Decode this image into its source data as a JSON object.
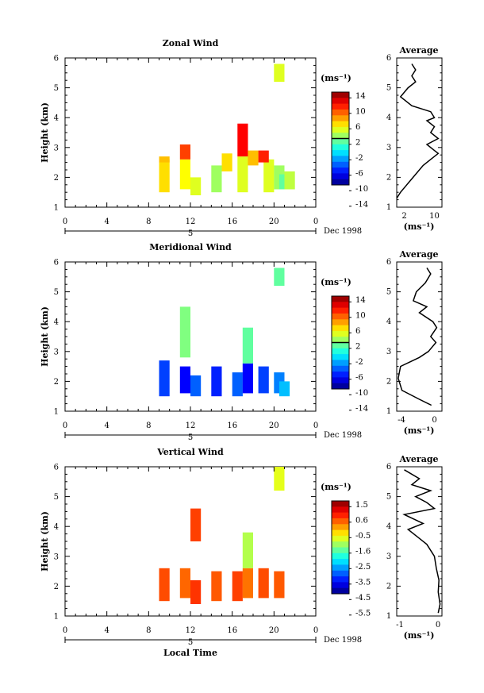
{
  "charts": [
    {
      "title": "Zonal Wind",
      "ylabel": "Height (km)",
      "yticks": [
        "1",
        "2",
        "3",
        "4",
        "5",
        "6"
      ],
      "xticks": [
        "0",
        "4",
        "8",
        "12",
        "16",
        "20",
        "0"
      ],
      "day_label": "5",
      "date_label": "Dec 1998",
      "xlabel": "",
      "cbar_unit": "(ms⁻¹)",
      "cbar_ticks": [
        "14",
        "10",
        "6",
        "2",
        "-2",
        "-6",
        "-10",
        "-14"
      ],
      "avg_title": "Average",
      "avg_xticks": [
        "2",
        "10"
      ],
      "avg_unit": "(ms⁻¹)",
      "avg_yticks": [
        "1",
        "2",
        "3",
        "4",
        "5",
        "6"
      ]
    },
    {
      "title": "Meridional Wind",
      "ylabel": "Height (km)",
      "yticks": [
        "1",
        "2",
        "3",
        "4",
        "5",
        "6"
      ],
      "xticks": [
        "0",
        "4",
        "8",
        "12",
        "16",
        "20",
        "0"
      ],
      "day_label": "5",
      "date_label": "Dec 1998",
      "xlabel": "",
      "cbar_unit": "(ms⁻¹)",
      "cbar_ticks": [
        "14",
        "10",
        "6",
        "2",
        "-2",
        "-6",
        "-10",
        "-14"
      ],
      "avg_title": "Average",
      "avg_xticks": [
        "-4",
        "0"
      ],
      "avg_unit": "(ms⁻¹)",
      "avg_yticks": [
        "1",
        "2",
        "3",
        "4",
        "5",
        "6"
      ]
    },
    {
      "title": "Vertical Wind",
      "ylabel": "Height (km)",
      "yticks": [
        "1",
        "2",
        "3",
        "4",
        "5",
        "6"
      ],
      "xticks": [
        "0",
        "4",
        "8",
        "12",
        "16",
        "20",
        "0"
      ],
      "day_label": "5",
      "date_label": "Dec 1998",
      "xlabel": "Local Time",
      "cbar_unit": "(ms⁻¹)",
      "cbar_ticks": [
        "1.5",
        "0.6",
        "-0.5",
        "-1.6",
        "-2.5",
        "-3.5",
        "-4.5",
        "-5.5"
      ],
      "avg_title": "Average",
      "avg_xticks": [
        "-1",
        "0"
      ],
      "avg_unit": "(ms⁻¹)",
      "avg_yticks": [
        "1",
        "2",
        "3",
        "4",
        "5",
        "6"
      ]
    }
  ],
  "chart_data": [
    {
      "type": "heatmap",
      "title": "Zonal Wind",
      "xlabel": "",
      "ylabel": "Height (km)",
      "x_unit": "hour (local time)",
      "xlim": [
        0,
        24
      ],
      "ylim": [
        1,
        6
      ],
      "color_range": [
        -16,
        16
      ],
      "zero_contour": true,
      "cells": [
        [
          9.5,
          1.5,
          2.6,
          5
        ],
        [
          9.5,
          2.5,
          2.7,
          6
        ],
        [
          11.5,
          1.6,
          2.6,
          4
        ],
        [
          11.5,
          2.6,
          3.1,
          10
        ],
        [
          12.5,
          1.4,
          2.0,
          3
        ],
        [
          14.5,
          1.5,
          2.4,
          1
        ],
        [
          15.5,
          2.2,
          2.8,
          5
        ],
        [
          17.0,
          1.5,
          2.7,
          3
        ],
        [
          17.0,
          2.7,
          3.8,
          12
        ],
        [
          18.0,
          2.4,
          2.9,
          6
        ],
        [
          19.5,
          1.5,
          2.6,
          3
        ],
        [
          20.5,
          1.6,
          2.4,
          1
        ],
        [
          21.0,
          1.6,
          2.1,
          -1
        ],
        [
          21.5,
          1.6,
          2.2,
          2
        ],
        [
          19.0,
          2.5,
          2.9,
          11
        ],
        [
          20.5,
          5.2,
          5.8,
          3
        ]
      ],
      "average": {
        "title": "Average",
        "xlim": [
          0,
          12
        ],
        "xlabel": "(ms⁻¹)",
        "points": [
          [
            4,
            5.8
          ],
          [
            5,
            5.6
          ],
          [
            4,
            5.4
          ],
          [
            5,
            5.2
          ],
          [
            3,
            5.0
          ],
          [
            1,
            4.7
          ],
          [
            4,
            4.4
          ],
          [
            9,
            4.2
          ],
          [
            10,
            4.0
          ],
          [
            8,
            3.9
          ],
          [
            10,
            3.7
          ],
          [
            9,
            3.5
          ],
          [
            11,
            3.3
          ],
          [
            8,
            3.1
          ],
          [
            10,
            2.9
          ],
          [
            11,
            2.8
          ],
          [
            9,
            2.6
          ],
          [
            7,
            2.4
          ],
          [
            5,
            2.1
          ],
          [
            3,
            1.8
          ],
          [
            1,
            1.5
          ],
          [
            0,
            1.3
          ]
        ]
      }
    },
    {
      "type": "heatmap",
      "title": "Meridional Wind",
      "xlabel": "",
      "ylabel": "Height (km)",
      "x_unit": "hour (local time)",
      "xlim": [
        0,
        24
      ],
      "ylim": [
        1,
        6
      ],
      "color_range": [
        -16,
        16
      ],
      "zero_contour": true,
      "cells": [
        [
          9.5,
          1.5,
          2.7,
          -10
        ],
        [
          11.5,
          1.6,
          2.5,
          -12
        ],
        [
          11.5,
          2.8,
          4.5,
          0
        ],
        [
          12.5,
          1.5,
          2.2,
          -9
        ],
        [
          14.5,
          1.5,
          2.5,
          -11
        ],
        [
          16.5,
          1.5,
          2.3,
          -9
        ],
        [
          17.5,
          1.6,
          2.6,
          -12
        ],
        [
          17.5,
          2.6,
          3.8,
          -1
        ],
        [
          19.0,
          1.6,
          2.5,
          -10
        ],
        [
          20.5,
          1.6,
          2.3,
          -8
        ],
        [
          21.0,
          1.5,
          2.0,
          -6
        ],
        [
          20.5,
          5.2,
          5.8,
          -1
        ]
      ],
      "average": {
        "title": "Average",
        "xlim": [
          -5,
          1
        ],
        "xlabel": "(ms⁻¹)",
        "points": [
          [
            -1,
            5.8
          ],
          [
            -0.5,
            5.6
          ],
          [
            -1.2,
            5.3
          ],
          [
            -2.4,
            5.0
          ],
          [
            -2.8,
            4.7
          ],
          [
            -1.0,
            4.5
          ],
          [
            -2.0,
            4.3
          ],
          [
            -0.2,
            4.0
          ],
          [
            0.3,
            3.8
          ],
          [
            -0.5,
            3.5
          ],
          [
            0.2,
            3.3
          ],
          [
            -0.8,
            3.0
          ],
          [
            -2.0,
            2.8
          ],
          [
            -4.5,
            2.5
          ],
          [
            -4.8,
            2.1
          ],
          [
            -4.3,
            1.7
          ],
          [
            -2.0,
            1.4
          ],
          [
            -0.4,
            1.2
          ]
        ]
      }
    },
    {
      "type": "heatmap",
      "title": "Vertical Wind",
      "xlabel": "Local Time",
      "ylabel": "Height (km)",
      "x_unit": "hour (local time)",
      "xlim": [
        0,
        24
      ],
      "ylim": [
        1,
        6
      ],
      "color_range": [
        -6,
        2
      ],
      "zero_contour": false,
      "cells": [
        [
          9.5,
          1.5,
          2.6,
          0.4
        ],
        [
          11.5,
          1.6,
          2.6,
          0.2
        ],
        [
          12.5,
          1.4,
          2.2,
          0.6
        ],
        [
          12.5,
          3.5,
          4.6,
          0.5
        ],
        [
          14.5,
          1.5,
          2.5,
          0.3
        ],
        [
          16.5,
          1.5,
          2.5,
          0.5
        ],
        [
          17.5,
          1.6,
          2.6,
          0.1
        ],
        [
          17.5,
          2.6,
          3.8,
          -1.6
        ],
        [
          19.0,
          1.6,
          2.6,
          0.4
        ],
        [
          20.5,
          1.6,
          2.5,
          0.3
        ],
        [
          20.5,
          5.2,
          6.0,
          -1.2
        ]
      ],
      "average": {
        "title": "Average",
        "xlim": [
          -1.1,
          0.1
        ],
        "xlabel": "(ms⁻¹)",
        "points": [
          [
            -0.9,
            5.9
          ],
          [
            -0.5,
            5.6
          ],
          [
            -0.7,
            5.4
          ],
          [
            -0.2,
            5.2
          ],
          [
            -0.6,
            5.0
          ],
          [
            -0.3,
            4.8
          ],
          [
            -0.1,
            4.6
          ],
          [
            -0.9,
            4.4
          ],
          [
            -0.4,
            4.1
          ],
          [
            -0.8,
            3.9
          ],
          [
            -0.5,
            3.6
          ],
          [
            -0.3,
            3.4
          ],
          [
            -0.1,
            3.0
          ],
          [
            -0.05,
            2.6
          ],
          [
            0.02,
            2.2
          ],
          [
            0.0,
            1.8
          ],
          [
            0.05,
            1.4
          ],
          [
            0.0,
            1.1
          ]
        ]
      }
    }
  ]
}
